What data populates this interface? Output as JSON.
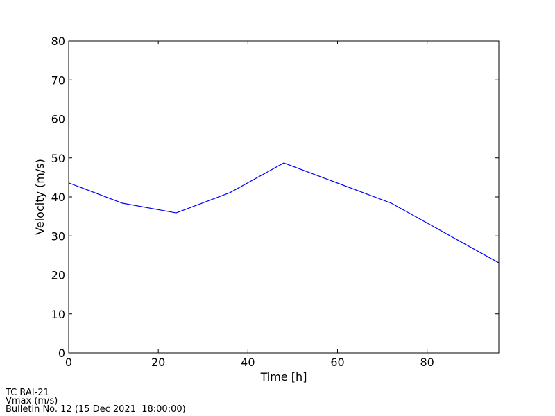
{
  "chart_data": {
    "type": "line",
    "x_label": "Time [h]",
    "y_label": "Velocity (m/s)",
    "x": [
      0,
      12,
      24,
      36,
      48,
      72,
      96
    ],
    "series": [
      {
        "name": "Vmax",
        "color": "#0000ff",
        "values": [
          43.6,
          38.4,
          35.9,
          41.1,
          48.7,
          38.4,
          23.1
        ]
      }
    ],
    "xlim": [
      0,
      96
    ],
    "xticks": [
      0,
      20,
      40,
      60,
      80
    ],
    "ylim": [
      0,
      80
    ],
    "yticks": [
      0,
      10,
      20,
      30,
      40,
      50,
      60,
      70,
      80
    ],
    "grid": false
  },
  "footer": [
    "TC RAI-21",
    "Vmax (m/s)",
    "Bulletin No. 12 (15 Dec 2021  18:00:00)"
  ]
}
